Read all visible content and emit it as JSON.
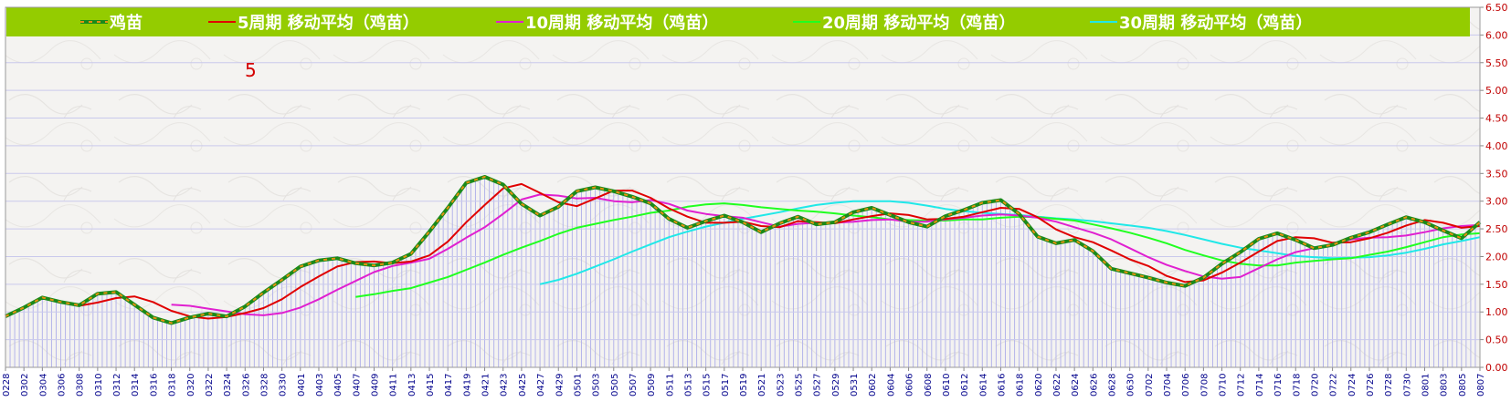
{
  "chart_data": {
    "type": "line",
    "title": "",
    "annotation": "5",
    "xlabel": "",
    "ylabel": "",
    "ylim": [
      0,
      6.5
    ],
    "y_ticks": [
      "0.00",
      "0.50",
      "1.00",
      "1.50",
      "2.00",
      "2.50",
      "3.00",
      "3.50",
      "4.00",
      "4.50",
      "5.00",
      "5.50",
      "6.00",
      "6.50"
    ],
    "grid": true,
    "legend_position": "top",
    "x": [
      "0228",
      "0302",
      "0304",
      "0306",
      "0308",
      "0310",
      "0312",
      "0314",
      "0316",
      "0318",
      "0320",
      "0322",
      "0324",
      "0326",
      "0328",
      "0330",
      "0401",
      "0403",
      "0405",
      "0407",
      "0409",
      "0411",
      "0413",
      "0415",
      "0417",
      "0419",
      "0421",
      "0423",
      "0425",
      "0427",
      "0429",
      "0501",
      "0503",
      "0505",
      "0507",
      "0509",
      "0511",
      "0513",
      "0515",
      "0517",
      "0519",
      "0521",
      "0523",
      "0525",
      "0527",
      "0529",
      "0531",
      "0602",
      "0604",
      "0606",
      "0608",
      "0610",
      "0612",
      "0614",
      "0616",
      "0618",
      "0620",
      "0622",
      "0624",
      "0626",
      "0628",
      "0630",
      "0702",
      "0704",
      "0706",
      "0708",
      "0710",
      "0712",
      "0714",
      "0716",
      "0718",
      "0720",
      "0722",
      "0724",
      "0726",
      "0728",
      "0730",
      "0801",
      "0803",
      "0805",
      "0807"
    ],
    "series": [
      {
        "name": "鸡苗",
        "color": "#008000",
        "style": "dashed-thick",
        "values": [
          0.92,
          1.08,
          1.26,
          1.18,
          1.12,
          1.33,
          1.36,
          1.13,
          0.9,
          0.8,
          0.9,
          0.97,
          0.92,
          1.1,
          1.35,
          1.58,
          1.82,
          1.93,
          1.97,
          1.88,
          1.84,
          1.89,
          2.05,
          2.45,
          2.88,
          3.33,
          3.44,
          3.3,
          2.95,
          2.74,
          2.9,
          3.18,
          3.25,
          3.18,
          3.08,
          2.96,
          2.68,
          2.52,
          2.64,
          2.74,
          2.62,
          2.44,
          2.6,
          2.72,
          2.58,
          2.62,
          2.8,
          2.88,
          2.75,
          2.62,
          2.54,
          2.73,
          2.84,
          2.97,
          3.02,
          2.77,
          2.36,
          2.24,
          2.3,
          2.1,
          1.78,
          1.7,
          1.62,
          1.53,
          1.47,
          1.62,
          1.87,
          2.08,
          2.32,
          2.42,
          2.3,
          2.15,
          2.21,
          2.34,
          2.44,
          2.58,
          2.71,
          2.62,
          2.47,
          2.33,
          2.62
        ]
      },
      {
        "name": "5周期 移动平均（鸡苗）",
        "color": "#e00000",
        "style": "solid",
        "values": [
          null,
          null,
          null,
          null,
          1.11,
          1.17,
          1.25,
          1.28,
          1.18,
          1.02,
          0.92,
          0.88,
          0.91,
          0.98,
          1.07,
          1.23,
          1.45,
          1.64,
          1.82,
          1.9,
          1.91,
          1.88,
          1.91,
          2.02,
          2.27,
          2.62,
          2.93,
          3.23,
          3.31,
          3.15,
          2.98,
          2.91,
          3.05,
          3.19,
          3.19,
          3.06,
          2.87,
          2.72,
          2.61,
          2.61,
          2.63,
          2.55,
          2.53,
          2.64,
          2.62,
          2.6,
          2.67,
          2.73,
          2.78,
          2.75,
          2.67,
          2.68,
          2.72,
          2.8,
          2.88,
          2.86,
          2.71,
          2.49,
          2.35,
          2.26,
          2.11,
          1.95,
          1.83,
          1.65,
          1.54,
          1.57,
          1.71,
          1.89,
          2.09,
          2.28,
          2.35,
          2.33,
          2.25,
          2.26,
          2.33,
          2.43,
          2.56,
          2.66,
          2.61,
          2.52,
          2.55
        ]
      },
      {
        "name": "10周期 移动平均（鸡苗）",
        "color": "#e020d0",
        "style": "solid",
        "values": [
          null,
          null,
          null,
          null,
          null,
          null,
          null,
          null,
          null,
          1.13,
          1.11,
          1.06,
          1.01,
          0.96,
          0.94,
          0.98,
          1.08,
          1.23,
          1.4,
          1.56,
          1.72,
          1.83,
          1.89,
          1.96,
          2.14,
          2.34,
          2.53,
          2.77,
          3.03,
          3.12,
          3.1,
          3.05,
          3.06,
          3.0,
          2.98,
          3.02,
          2.95,
          2.83,
          2.77,
          2.73,
          2.7,
          2.62,
          2.54,
          2.59,
          2.61,
          2.61,
          2.63,
          2.66,
          2.67,
          2.63,
          2.63,
          2.67,
          2.7,
          2.74,
          2.76,
          2.74,
          2.7,
          2.63,
          2.53,
          2.43,
          2.31,
          2.15,
          1.99,
          1.85,
          1.74,
          1.64,
          1.6,
          1.63,
          1.79,
          1.95,
          2.08,
          2.15,
          2.22,
          2.31,
          2.34,
          2.35,
          2.38,
          2.44,
          2.51,
          2.55,
          2.57
        ]
      },
      {
        "name": "20周期 移动平均（鸡苗）",
        "color": "#20ff20",
        "style": "solid",
        "values": [
          null,
          null,
          null,
          null,
          null,
          null,
          null,
          null,
          null,
          null,
          null,
          null,
          null,
          null,
          null,
          null,
          null,
          null,
          null,
          1.27,
          1.32,
          1.38,
          1.43,
          1.53,
          1.63,
          1.76,
          1.89,
          2.03,
          2.16,
          2.28,
          2.41,
          2.52,
          2.59,
          2.66,
          2.72,
          2.79,
          2.83,
          2.9,
          2.94,
          2.96,
          2.93,
          2.89,
          2.86,
          2.83,
          2.81,
          2.78,
          2.74,
          2.71,
          2.67,
          2.66,
          2.65,
          2.65,
          2.67,
          2.67,
          2.7,
          2.72,
          2.71,
          2.68,
          2.65,
          2.58,
          2.51,
          2.43,
          2.34,
          2.24,
          2.12,
          2.02,
          1.93,
          1.87,
          1.84,
          1.84,
          1.89,
          1.92,
          1.95,
          1.97,
          2.03,
          2.09,
          2.17,
          2.26,
          2.35,
          2.4,
          2.42
        ]
      },
      {
        "name": "30周期 移动平均（鸡苗）",
        "color": "#20e8e8",
        "style": "solid",
        "values": [
          null,
          null,
          null,
          null,
          null,
          null,
          null,
          null,
          null,
          null,
          null,
          null,
          null,
          null,
          null,
          null,
          null,
          null,
          null,
          null,
          null,
          null,
          null,
          null,
          null,
          null,
          null,
          null,
          null,
          1.5,
          1.58,
          1.69,
          1.82,
          1.95,
          2.09,
          2.22,
          2.35,
          2.45,
          2.54,
          2.61,
          2.68,
          2.74,
          2.8,
          2.87,
          2.93,
          2.97,
          3.0,
          3.0,
          3.0,
          2.97,
          2.92,
          2.86,
          2.82,
          2.79,
          2.77,
          2.75,
          2.72,
          2.69,
          2.67,
          2.64,
          2.6,
          2.56,
          2.52,
          2.46,
          2.39,
          2.31,
          2.23,
          2.16,
          2.11,
          2.06,
          2.01,
          1.99,
          1.97,
          1.98,
          1.99,
          2.02,
          2.07,
          2.14,
          2.22,
          2.28,
          2.35
        ]
      }
    ]
  }
}
